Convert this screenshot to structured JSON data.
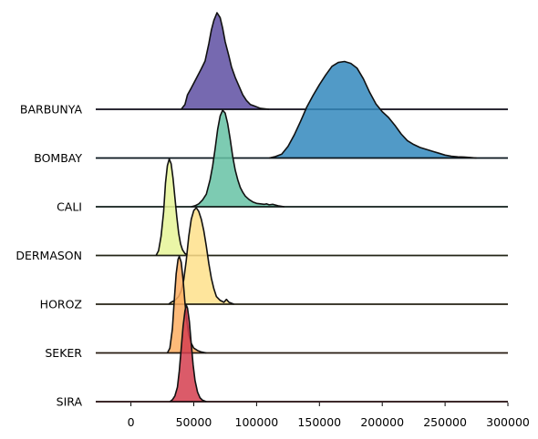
{
  "chart_data": {
    "type": "ridgeline",
    "x_ticks": [
      0,
      50000,
      100000,
      150000,
      200000,
      250000,
      300000
    ],
    "x_tick_labels": [
      "0",
      "50000",
      "100000",
      "150000",
      "200000",
      "250000",
      "300000"
    ],
    "x_range": [
      -28000,
      300000
    ],
    "baseline_range": [
      -28000,
      300000
    ],
    "overlap_scale": 1.95,
    "series": [
      {
        "name": "BARBUNYA",
        "color": "#5e4fa2",
        "points": [
          [
            40000,
            0
          ],
          [
            43000,
            0.05
          ],
          [
            45000,
            0.15
          ],
          [
            48000,
            0.22
          ],
          [
            52000,
            0.32
          ],
          [
            56000,
            0.42
          ],
          [
            59000,
            0.5
          ],
          [
            62000,
            0.68
          ],
          [
            64000,
            0.82
          ],
          [
            66000,
            0.92
          ],
          [
            68500,
            1.0
          ],
          [
            71000,
            0.95
          ],
          [
            73000,
            0.84
          ],
          [
            75000,
            0.7
          ],
          [
            78000,
            0.55
          ],
          [
            80000,
            0.44
          ],
          [
            83000,
            0.33
          ],
          [
            86000,
            0.24
          ],
          [
            89000,
            0.15
          ],
          [
            92000,
            0.09
          ],
          [
            95000,
            0.05
          ],
          [
            98000,
            0.035
          ],
          [
            103000,
            0.01
          ],
          [
            110000,
            0
          ]
        ]
      },
      {
        "name": "BOMBAY",
        "color": "#3288bd",
        "points": [
          [
            110000,
            0
          ],
          [
            115000,
            0.015
          ],
          [
            120000,
            0.04
          ],
          [
            125000,
            0.12
          ],
          [
            130000,
            0.24
          ],
          [
            135000,
            0.38
          ],
          [
            140000,
            0.53
          ],
          [
            145000,
            0.65
          ],
          [
            150000,
            0.76
          ],
          [
            155000,
            0.86
          ],
          [
            160000,
            0.95
          ],
          [
            165000,
            0.99
          ],
          [
            170000,
            1.0
          ],
          [
            175000,
            0.98
          ],
          [
            180000,
            0.93
          ],
          [
            185000,
            0.82
          ],
          [
            190000,
            0.68
          ],
          [
            195000,
            0.56
          ],
          [
            200000,
            0.48
          ],
          [
            205000,
            0.42
          ],
          [
            210000,
            0.34
          ],
          [
            215000,
            0.25
          ],
          [
            220000,
            0.18
          ],
          [
            225000,
            0.14
          ],
          [
            230000,
            0.11
          ],
          [
            235000,
            0.09
          ],
          [
            240000,
            0.07
          ],
          [
            245000,
            0.05
          ],
          [
            250000,
            0.03
          ],
          [
            255000,
            0.018
          ],
          [
            260000,
            0.012
          ],
          [
            265000,
            0.01
          ],
          [
            270000,
            0.005
          ],
          [
            275000,
            0
          ]
        ]
      },
      {
        "name": "CALI",
        "color": "#66c2a5",
        "points": [
          [
            48000,
            0
          ],
          [
            51000,
            0.01
          ],
          [
            54000,
            0.03
          ],
          [
            57000,
            0.07
          ],
          [
            60000,
            0.13
          ],
          [
            63000,
            0.28
          ],
          [
            65000,
            0.42
          ],
          [
            67000,
            0.6
          ],
          [
            69000,
            0.8
          ],
          [
            71000,
            0.94
          ],
          [
            73000,
            1.0
          ],
          [
            75000,
            0.97
          ],
          [
            77000,
            0.86
          ],
          [
            79000,
            0.7
          ],
          [
            81000,
            0.52
          ],
          [
            83000,
            0.38
          ],
          [
            85000,
            0.28
          ],
          [
            87000,
            0.2
          ],
          [
            89000,
            0.15
          ],
          [
            91000,
            0.11
          ],
          [
            94000,
            0.075
          ],
          [
            97000,
            0.05
          ],
          [
            100000,
            0.035
          ],
          [
            103000,
            0.03
          ],
          [
            106000,
            0.025
          ],
          [
            108000,
            0.03
          ],
          [
            110000,
            0.02
          ],
          [
            113000,
            0.025
          ],
          [
            117000,
            0.01
          ],
          [
            122000,
            0
          ]
        ]
      },
      {
        "name": "DERMASON",
        "color": "#e6f598",
        "points": [
          [
            20000,
            0
          ],
          [
            22000,
            0.05
          ],
          [
            24000,
            0.2
          ],
          [
            26000,
            0.45
          ],
          [
            27500,
            0.75
          ],
          [
            29000,
            0.93
          ],
          [
            30500,
            1.0
          ],
          [
            32000,
            0.95
          ],
          [
            33500,
            0.8
          ],
          [
            35000,
            0.6
          ],
          [
            36500,
            0.4
          ],
          [
            38000,
            0.23
          ],
          [
            39500,
            0.12
          ],
          [
            41000,
            0.06
          ],
          [
            43000,
            0.02
          ],
          [
            46000,
            0
          ]
        ]
      },
      {
        "name": "HOROZ",
        "color": "#fee08b",
        "points": [
          [
            30000,
            0
          ],
          [
            32000,
            0.02
          ],
          [
            35000,
            0.04
          ],
          [
            38000,
            0.08
          ],
          [
            40000,
            0.14
          ],
          [
            42000,
            0.25
          ],
          [
            44000,
            0.45
          ],
          [
            46000,
            0.7
          ],
          [
            48000,
            0.88
          ],
          [
            50000,
            0.97
          ],
          [
            52000,
            1.0
          ],
          [
            54000,
            0.96
          ],
          [
            56000,
            0.88
          ],
          [
            58000,
            0.76
          ],
          [
            60000,
            0.6
          ],
          [
            62000,
            0.42
          ],
          [
            64000,
            0.27
          ],
          [
            66000,
            0.16
          ],
          [
            68000,
            0.08
          ],
          [
            71000,
            0.04
          ],
          [
            74000,
            0.02
          ],
          [
            76000,
            0.05
          ],
          [
            78000,
            0.02
          ],
          [
            82000,
            0
          ]
        ]
      },
      {
        "name": "SEKER",
        "color": "#fdae61",
        "points": [
          [
            29000,
            0
          ],
          [
            31000,
            0.05
          ],
          [
            33000,
            0.25
          ],
          [
            34500,
            0.55
          ],
          [
            36000,
            0.82
          ],
          [
            37500,
            0.97
          ],
          [
            38500,
            1.0
          ],
          [
            40000,
            0.94
          ],
          [
            41500,
            0.76
          ],
          [
            43000,
            0.52
          ],
          [
            44500,
            0.33
          ],
          [
            46000,
            0.19
          ],
          [
            48000,
            0.1
          ],
          [
            50000,
            0.05
          ],
          [
            53000,
            0.025
          ],
          [
            56000,
            0.01
          ],
          [
            60000,
            0
          ]
        ]
      },
      {
        "name": "SIRA",
        "color": "#d53e4f",
        "points": [
          [
            31000,
            0
          ],
          [
            33000,
            0.02
          ],
          [
            35000,
            0.06
          ],
          [
            37000,
            0.15
          ],
          [
            38500,
            0.32
          ],
          [
            40000,
            0.55
          ],
          [
            41500,
            0.78
          ],
          [
            43000,
            0.94
          ],
          [
            44000,
            1.0
          ],
          [
            45000,
            0.97
          ],
          [
            46500,
            0.83
          ],
          [
            48000,
            0.6
          ],
          [
            49500,
            0.38
          ],
          [
            51000,
            0.22
          ],
          [
            53000,
            0.1
          ],
          [
            55000,
            0.04
          ],
          [
            57000,
            0.015
          ],
          [
            60000,
            0
          ]
        ]
      }
    ]
  }
}
